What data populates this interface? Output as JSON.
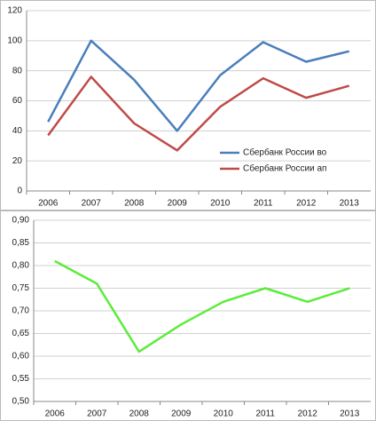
{
  "chart_data": [
    {
      "type": "line",
      "categories": [
        "2006",
        "2007",
        "2008",
        "2009",
        "2010",
        "2011",
        "2012",
        "2013"
      ],
      "series": [
        {
          "name": "Сбербанк России во",
          "color": "#4a7ebb",
          "values": [
            46,
            100,
            74,
            40,
            77,
            99,
            86,
            93
          ]
        },
        {
          "name": "Сбербанк России ап",
          "color": "#be4b48",
          "values": [
            37,
            76,
            45,
            27,
            56,
            75,
            62,
            70
          ]
        }
      ],
      "ylim": [
        0,
        120
      ],
      "yticks": [
        0,
        20,
        40,
        60,
        80,
        100,
        120
      ],
      "grid": true,
      "legend": "lower-right"
    },
    {
      "type": "line",
      "categories": [
        "2006",
        "2007",
        "2008",
        "2009",
        "2010",
        "2011",
        "2012",
        "2013"
      ],
      "values": [
        0.81,
        0.76,
        0.61,
        0.67,
        0.72,
        0.75,
        0.72,
        0.75
      ],
      "color": "#5cec3a",
      "ylim": [
        0.5,
        0.9
      ],
      "yticks": [
        {
          "value": 0.5,
          "label": "0,50"
        },
        {
          "value": 0.55,
          "label": "0,55"
        },
        {
          "value": 0.6,
          "label": "0,60"
        },
        {
          "value": 0.65,
          "label": "0,65"
        },
        {
          "value": 0.7,
          "label": "0,70"
        },
        {
          "value": 0.75,
          "label": "0,75"
        },
        {
          "value": 0.8,
          "label": "0,80"
        },
        {
          "value": 0.85,
          "label": "0,85"
        },
        {
          "value": 0.9,
          "label": "0,90"
        }
      ],
      "grid": true
    }
  ]
}
